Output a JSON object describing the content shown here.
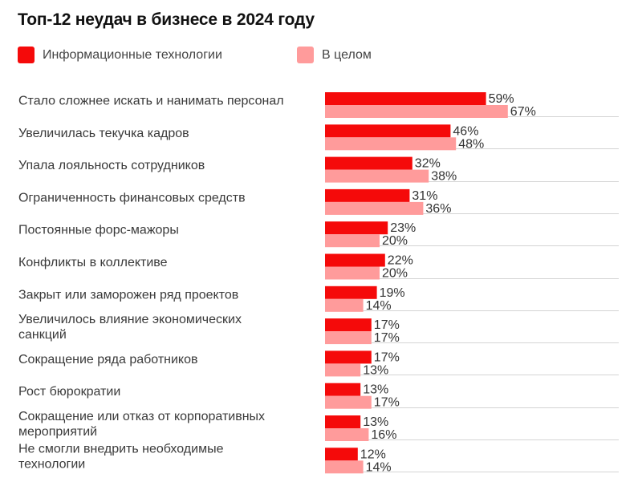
{
  "chart_data": {
    "type": "bar",
    "orientation": "horizontal",
    "title": "Топ-12 неудач в бизнесе в 2024 году",
    "value_suffix": "%",
    "series": [
      {
        "name": "Информационные технологии",
        "color": "#f50a0a",
        "values": [
          59,
          46,
          32,
          31,
          23,
          22,
          19,
          17,
          17,
          13,
          13,
          12
        ]
      },
      {
        "name": "В целом",
        "color": "#ff9b9b",
        "values": [
          67,
          48,
          38,
          36,
          20,
          20,
          14,
          17,
          13,
          17,
          16,
          14
        ]
      }
    ],
    "categories": [
      [
        "Стало сложнее искать и нанимать персонал"
      ],
      [
        "Увеличилась текучка кадров"
      ],
      [
        "Упала лояльность сотрудников"
      ],
      [
        "Ограниченность финансовых средств"
      ],
      [
        "Постоянные форс-мажоры"
      ],
      [
        "Конфликты в коллективе"
      ],
      [
        "Закрыт или заморожен ряд проектов"
      ],
      [
        "Увеличилось влияние экономических",
        "санкций"
      ],
      [
        "Сокращение ряда работников"
      ],
      [
        "Рост бюрократии"
      ],
      [
        "Сокращение или отказ от корпоративных",
        "мероприятий"
      ],
      [
        "Не смогли внедрить необходимые",
        "технологии"
      ]
    ],
    "xlim": [
      0,
      100
    ],
    "grid": false,
    "legend_position": "top-left"
  }
}
